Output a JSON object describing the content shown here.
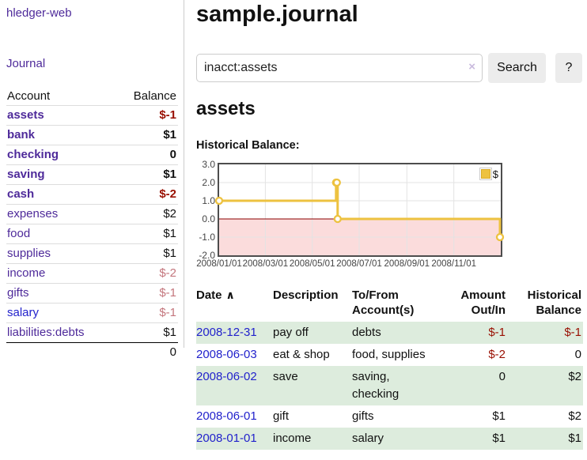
{
  "app": {
    "brand": "hledger-web"
  },
  "sidebar": {
    "journal_link": "Journal",
    "accounts_table": {
      "account_header": "Account",
      "balance_header": "Balance",
      "rows": [
        {
          "name": "assets",
          "balance": "$-1"
        },
        {
          "name": "bank",
          "balance": "$1"
        },
        {
          "name": "checking",
          "balance": "0"
        },
        {
          "name": "saving",
          "balance": "$1"
        },
        {
          "name": "cash",
          "balance": "$-2"
        },
        {
          "name": "expenses",
          "balance": "$2"
        },
        {
          "name": "food",
          "balance": "$1"
        },
        {
          "name": "supplies",
          "balance": "$1"
        },
        {
          "name": "income",
          "balance": "$-2"
        },
        {
          "name": "gifts",
          "balance": "$-1"
        },
        {
          "name": "salary",
          "balance": "$-1"
        },
        {
          "name": "liabilities:debts",
          "balance": "$1"
        }
      ],
      "total": "0"
    }
  },
  "main": {
    "title": "sample.journal",
    "search": {
      "value": "inacct:assets",
      "clear_icon": "×",
      "search_button": "Search",
      "help_button": "?"
    },
    "account_heading": "assets",
    "chart_heading": "Historical Balance:"
  },
  "chart_data": {
    "type": "line",
    "step": true,
    "title": "Historical Balance",
    "legend_label": "$",
    "legend_position": "top-right",
    "grid": true,
    "xlim": [
      "2008-01-01",
      "2009-01-01"
    ],
    "ylim": [
      -2,
      3
    ],
    "yticks": [
      3,
      2,
      1,
      0,
      -1,
      -2
    ],
    "xtick_labels": [
      "2008/01/01",
      "2008/03/01",
      "2008/05/01",
      "2008/07/01",
      "2008/09/01",
      "2008/11/01"
    ],
    "xtick_dates": [
      "2008-01-01",
      "2008-03-01",
      "2008-05-01",
      "2008-07-01",
      "2008-09-01",
      "2008-11-01"
    ],
    "series": [
      {
        "name": "$",
        "color": "#edc240",
        "points": [
          [
            "2008-01-01",
            1
          ],
          [
            "2008-06-01",
            2
          ],
          [
            "2008-06-02",
            2
          ],
          [
            "2008-06-03",
            0
          ],
          [
            "2008-12-31",
            -1
          ]
        ]
      }
    ],
    "negative_region_color": "#fbdcdc",
    "zero_line_color": "#8b0000",
    "line_color": "#edc240",
    "grid_color": "#e3e3e3",
    "border_color": "#4d4d4d"
  },
  "register": {
    "columns": [
      {
        "label": "Date"
      },
      {
        "label": "Description"
      },
      {
        "label": "To/From Account(s)"
      },
      {
        "label": "Amount Out/In"
      },
      {
        "label": "Historical Balance"
      }
    ],
    "sort_icon": "∧",
    "rows": [
      {
        "date": "2008-12-31",
        "description": "pay off",
        "accounts": "debts",
        "amount": "$-1",
        "balance": "$-1"
      },
      {
        "date": "2008-06-03",
        "description": "eat & shop",
        "accounts": "food, supplies",
        "amount": "$-2",
        "balance": "0"
      },
      {
        "date": "2008-06-02",
        "description": "save",
        "accounts": "saving, checking",
        "amount": "0",
        "balance": "$2"
      },
      {
        "date": "2008-06-01",
        "description": "gift",
        "accounts": "gifts",
        "amount": "$1",
        "balance": "$2"
      },
      {
        "date": "2008-01-01",
        "description": "income",
        "accounts": "salary",
        "amount": "$1",
        "balance": "$1"
      }
    ]
  }
}
